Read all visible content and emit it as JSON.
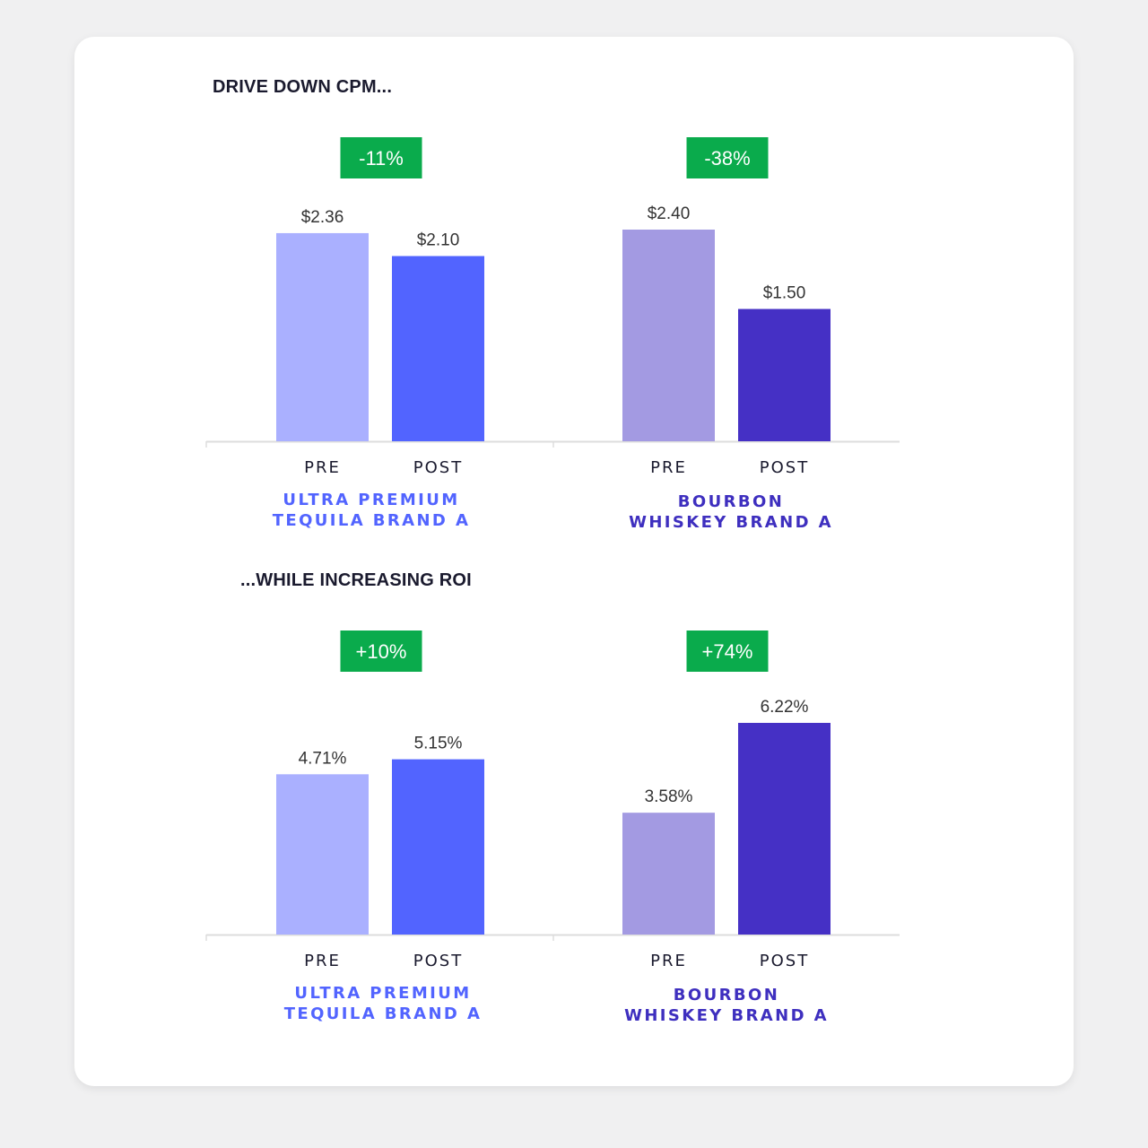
{
  "sections": [
    {
      "title": "DRIVE DOWN CPM..."
    },
    {
      "title": "...WHILE INCREASING ROI"
    }
  ],
  "colors": {
    "tequila_pre": "#aab0ff",
    "tequila_post": "#5264ff",
    "bourbon_pre": "#a39ae2",
    "bourbon_post": "#4530c5",
    "badge": "#0aab4c",
    "tequila_brand_text": "#5264ff",
    "bourbon_brand_text": "#3e2fbf"
  },
  "chart_data": [
    {
      "type": "bar",
      "section": 0,
      "brand": [
        "ULTRA PREMIUM",
        "TEQUILA BRAND A"
      ],
      "categories": [
        "PRE",
        "POST"
      ],
      "values": [
        2.36,
        2.1
      ],
      "value_labels": [
        "$2.36",
        "$2.10"
      ],
      "change_badge": "-11%",
      "ylim": [
        0,
        2.4
      ],
      "colors": [
        "#aab0ff",
        "#5264ff"
      ],
      "brand_color": "#5264ff"
    },
    {
      "type": "bar",
      "section": 0,
      "brand": [
        "BOURBON",
        "WHISKEY BRAND A"
      ],
      "categories": [
        "PRE",
        "POST"
      ],
      "values": [
        2.4,
        1.5
      ],
      "value_labels": [
        "$2.40",
        "$1.50"
      ],
      "change_badge": "-38%",
      "ylim": [
        0,
        2.4
      ],
      "colors": [
        "#a39ae2",
        "#4530c5"
      ],
      "brand_color": "#3e2fbf"
    },
    {
      "type": "bar",
      "section": 1,
      "brand": [
        "ULTRA PREMIUM",
        "TEQUILA BRAND A"
      ],
      "categories": [
        "PRE",
        "POST"
      ],
      "values": [
        4.71,
        5.15
      ],
      "value_labels": [
        "4.71%",
        "5.15%"
      ],
      "change_badge": "+10%",
      "ylim": [
        0,
        6.22
      ],
      "colors": [
        "#aab0ff",
        "#5264ff"
      ],
      "brand_color": "#5264ff"
    },
    {
      "type": "bar",
      "section": 1,
      "brand": [
        "BOURBON",
        "WHISKEY BRAND A"
      ],
      "categories": [
        "PRE",
        "POST"
      ],
      "values": [
        3.58,
        6.22
      ],
      "value_labels": [
        "3.58%",
        "6.22%"
      ],
      "change_badge": "+74%",
      "ylim": [
        0,
        6.22
      ],
      "colors": [
        "#a39ae2",
        "#4530c5"
      ],
      "brand_color": "#3e2fbf"
    }
  ]
}
